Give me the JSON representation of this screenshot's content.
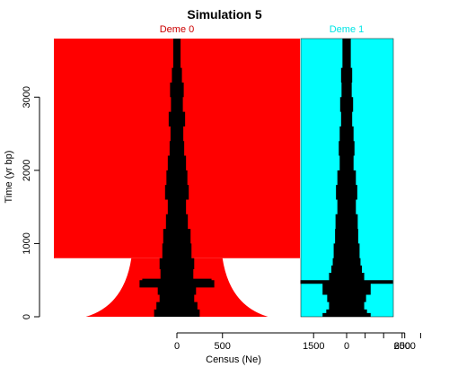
{
  "chart_data": {
    "type": "area",
    "title": "Simulation 5",
    "xlabel": "Census (Ne)",
    "ylabel": "Time (yr bp)",
    "ylim": [
      0,
      3800
    ],
    "y_ticks": [
      0,
      1000,
      2000,
      3000
    ],
    "demes": [
      {
        "name": "Deme 0",
        "color": "#ff0000",
        "label_color": "#cc0000",
        "x_ticks": [
          0,
          500,
          1500,
          2500
        ],
        "census_width": 2700,
        "census_before_800": 2700,
        "census_at_800": 1000,
        "census_at_0": 2000,
        "ne_profile": [
          [
            3800,
            80
          ],
          [
            3400,
            110
          ],
          [
            3200,
            150
          ],
          [
            3000,
            130
          ],
          [
            2800,
            180
          ],
          [
            2600,
            140
          ],
          [
            2400,
            160
          ],
          [
            2200,
            200
          ],
          [
            2000,
            230
          ],
          [
            1800,
            260
          ],
          [
            1600,
            200
          ],
          [
            1400,
            240
          ],
          [
            1200,
            300
          ],
          [
            1000,
            320
          ],
          [
            800,
            380
          ],
          [
            650,
            360
          ],
          [
            520,
            760
          ],
          [
            500,
            820
          ],
          [
            400,
            420
          ],
          [
            300,
            380
          ],
          [
            200,
            450
          ],
          [
            100,
            500
          ],
          [
            0,
            520
          ]
        ]
      },
      {
        "name": "Deme 1",
        "color": "#00ffff",
        "label_color": "#00e5e5",
        "x_ticks": [
          0,
          600
        ],
        "census_width": 1000,
        "ne_profile": [
          [
            3800,
            90
          ],
          [
            3400,
            120
          ],
          [
            3200,
            110
          ],
          [
            3000,
            140
          ],
          [
            2800,
            120
          ],
          [
            2600,
            150
          ],
          [
            2400,
            170
          ],
          [
            2200,
            150
          ],
          [
            2000,
            200
          ],
          [
            1800,
            230
          ],
          [
            1600,
            200
          ],
          [
            1400,
            240
          ],
          [
            1200,
            250
          ],
          [
            1000,
            280
          ],
          [
            800,
            300
          ],
          [
            700,
            330
          ],
          [
            600,
            380
          ],
          [
            500,
            1000
          ],
          [
            450,
            520
          ],
          [
            300,
            420
          ],
          [
            200,
            380
          ],
          [
            100,
            440
          ],
          [
            50,
            520
          ],
          [
            0,
            460
          ]
        ]
      }
    ]
  }
}
